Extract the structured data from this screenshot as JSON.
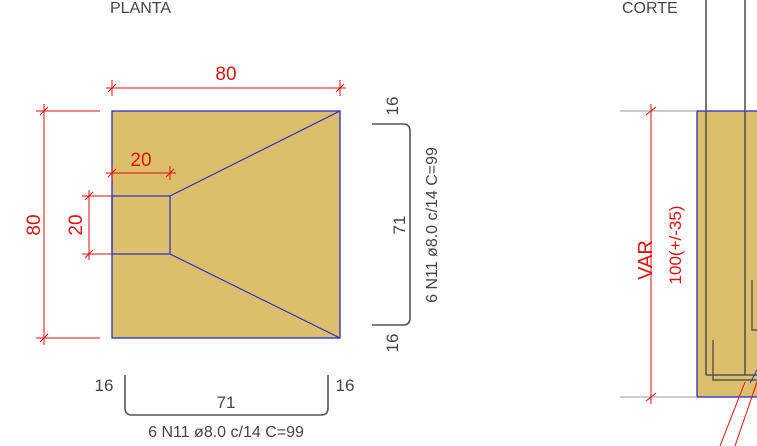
{
  "views": {
    "plan_title": "PLANTA",
    "section_title": "CORTE"
  },
  "plan": {
    "dim_width": "80",
    "dim_height": "80",
    "dim_pedestal_width": "20",
    "dim_pedestal_height": "20"
  },
  "rebar_vertical": {
    "top_hook": "16",
    "length": "71",
    "bottom_hook": "16",
    "spec": "6 N11 ø8.0 c/14 C=99"
  },
  "rebar_horizontal": {
    "left_hook": "16",
    "length": "71",
    "right_hook": "16",
    "spec": "6 N11 ø8.0 c/14 C=99"
  },
  "section": {
    "var_label": "VAR",
    "depth_label": "100(+/-35)"
  },
  "colors": {
    "concrete_fill": "#dcbf6a",
    "outline": "#2a2ad0",
    "dimension": "#e01010",
    "text": "#444444",
    "rebar": "#555555"
  }
}
